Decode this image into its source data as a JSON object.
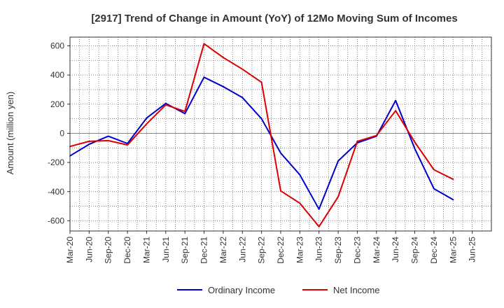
{
  "chart_data": {
    "type": "line",
    "title": "[2917]  Trend of Change in Amount (YoY) of 12Mo Moving Sum of Incomes",
    "xlabel": "",
    "ylabel": "Amount (million yen)",
    "ylim": [
      -670,
      660
    ],
    "yticks": [
      600,
      400,
      200,
      0,
      -200,
      -400,
      -600
    ],
    "grid": true,
    "legend_position": "bottom",
    "categories": [
      "Mar-20",
      "Jun-20",
      "Sep-20",
      "Dec-20",
      "Mar-21",
      "Jun-21",
      "Sep-21",
      "Dec-21",
      "Mar-22",
      "Jun-22",
      "Sep-22",
      "Dec-22",
      "Mar-23",
      "Jun-23",
      "Sep-23",
      "Dec-23",
      "Mar-24",
      "Jun-24",
      "Sep-24",
      "Dec-24",
      "Mar-25",
      "Jun-25"
    ],
    "series": [
      {
        "name": "Ordinary Income",
        "color": "#0000cc",
        "values": [
          -155,
          -75,
          -20,
          -70,
          105,
          205,
          135,
          385,
          320,
          245,
          100,
          -135,
          -285,
          -520,
          -190,
          -65,
          -20,
          225,
          -105,
          -380,
          -455,
          null
        ]
      },
      {
        "name": "Net Income",
        "color": "#dd0000",
        "values": [
          -90,
          -55,
          -50,
          -80,
          65,
          195,
          150,
          615,
          520,
          440,
          350,
          -395,
          -480,
          -640,
          -435,
          -55,
          -15,
          155,
          -60,
          -250,
          -315,
          null
        ]
      }
    ]
  }
}
